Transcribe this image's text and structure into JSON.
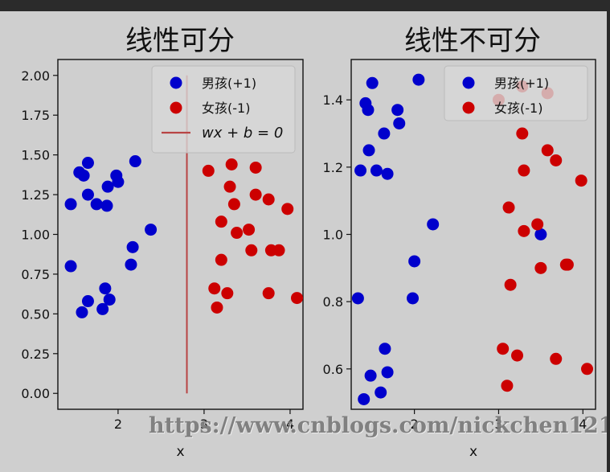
{
  "watermark": "https://www.cnblogs.com/nickchen121/",
  "colors": {
    "pos": "#0000cc",
    "neg": "#cc0000",
    "line": "#b84444",
    "background": "#cfcfcf"
  },
  "chart_data": [
    {
      "type": "scatter",
      "title": "线性可分",
      "xlabel": "x",
      "ylabel": "",
      "xlim": [
        1.3,
        4.15
      ],
      "ylim": [
        -0.1,
        2.1
      ],
      "xticks": [
        "2",
        "3",
        "4"
      ],
      "xtick_values": [
        2,
        3,
        4
      ],
      "yticks": [
        "0.00",
        "0.25",
        "0.50",
        "0.75",
        "1.00",
        "1.25",
        "1.50",
        "1.75",
        "2.00"
      ],
      "ytick_values": [
        0,
        0.25,
        0.5,
        0.75,
        1.0,
        1.25,
        1.5,
        1.75,
        2.0
      ],
      "legend_position": "top-right",
      "legend": [
        {
          "label": "男孩(+1)",
          "marker": "dot",
          "color": "pos"
        },
        {
          "label": "女孩(-1)",
          "marker": "dot",
          "color": "neg"
        },
        {
          "label": "wx + b = 0",
          "marker": "line",
          "color": "line"
        }
      ],
      "decision_line": {
        "x": 2.8,
        "y_range": [
          0,
          2.0
        ]
      },
      "series": [
        {
          "name": "男孩(+1)",
          "color": "pos",
          "points": [
            [
              1.45,
              1.19
            ],
            [
              1.55,
              1.39
            ],
            [
              1.6,
              1.37
            ],
            [
              1.65,
              1.45
            ],
            [
              1.65,
              1.25
            ],
            [
              1.75,
              1.19
            ],
            [
              1.87,
              1.18
            ],
            [
              1.88,
              1.3
            ],
            [
              1.98,
              1.37
            ],
            [
              2.0,
              1.33
            ],
            [
              2.2,
              1.46
            ],
            [
              2.38,
              1.03
            ],
            [
              2.17,
              0.92
            ],
            [
              2.15,
              0.81
            ],
            [
              1.45,
              0.8
            ],
            [
              1.65,
              0.58
            ],
            [
              1.58,
              0.51
            ],
            [
              1.82,
              0.53
            ],
            [
              1.85,
              0.66
            ],
            [
              1.9,
              0.59
            ]
          ]
        },
        {
          "name": "女孩(-1)",
          "color": "neg",
          "points": [
            [
              3.05,
              1.4
            ],
            [
              3.32,
              1.44
            ],
            [
              3.6,
              1.42
            ],
            [
              3.6,
              1.25
            ],
            [
              3.75,
              1.22
            ],
            [
              3.97,
              1.16
            ],
            [
              3.3,
              1.3
            ],
            [
              3.35,
              1.19
            ],
            [
              3.2,
              1.08
            ],
            [
              3.38,
              1.01
            ],
            [
              3.52,
              1.03
            ],
            [
              3.78,
              0.9
            ],
            [
              3.87,
              0.9
            ],
            [
              3.55,
              0.9
            ],
            [
              3.2,
              0.84
            ],
            [
              3.12,
              0.66
            ],
            [
              3.27,
              0.63
            ],
            [
              3.15,
              0.54
            ],
            [
              3.75,
              0.63
            ],
            [
              4.08,
              0.6
            ]
          ]
        }
      ]
    },
    {
      "type": "scatter",
      "title": "线性不可分",
      "xlabel": "x",
      "ylabel": "",
      "xlim": [
        1.25,
        4.15
      ],
      "ylim": [
        0.48,
        1.52
      ],
      "xticks": [
        "2",
        "3",
        "4"
      ],
      "xtick_values": [
        2,
        3,
        4
      ],
      "yticks": [
        "0.6",
        "0.8",
        "1.0",
        "1.2",
        "1.4"
      ],
      "ytick_values": [
        0.6,
        0.8,
        1.0,
        1.2,
        1.4
      ],
      "legend_position": "top-right",
      "legend": [
        {
          "label": "男孩(+1)",
          "marker": "dot",
          "color": "pos"
        },
        {
          "label": "女孩(-1)",
          "marker": "dot",
          "color": "neg"
        }
      ],
      "series": [
        {
          "name": "男孩(+1)",
          "color": "pos",
          "points": [
            [
              1.42,
              1.39
            ],
            [
              1.45,
              1.37
            ],
            [
              1.5,
              1.45
            ],
            [
              1.36,
              1.19
            ],
            [
              1.46,
              1.25
            ],
            [
              1.55,
              1.19
            ],
            [
              1.68,
              1.18
            ],
            [
              1.64,
              1.3
            ],
            [
              1.8,
              1.37
            ],
            [
              1.82,
              1.33
            ],
            [
              2.05,
              1.46
            ],
            [
              2.22,
              1.03
            ],
            [
              2.0,
              0.92
            ],
            [
              1.98,
              0.81
            ],
            [
              1.33,
              0.81
            ],
            [
              1.48,
              0.58
            ],
            [
              1.4,
              0.51
            ],
            [
              1.6,
              0.53
            ],
            [
              1.65,
              0.66
            ],
            [
              1.68,
              0.59
            ],
            [
              3.5,
              1.0
            ]
          ]
        },
        {
          "name": "女孩(-1)",
          "color": "neg",
          "points": [
            [
              3.0,
              1.4
            ],
            [
              3.28,
              1.44
            ],
            [
              3.58,
              1.42
            ],
            [
              3.58,
              1.25
            ],
            [
              3.68,
              1.22
            ],
            [
              3.98,
              1.16
            ],
            [
              3.28,
              1.3
            ],
            [
              3.3,
              1.19
            ],
            [
              3.12,
              1.08
            ],
            [
              3.3,
              1.01
            ],
            [
              3.46,
              1.03
            ],
            [
              3.8,
              0.91
            ],
            [
              3.82,
              0.91
            ],
            [
              3.5,
              0.9
            ],
            [
              3.14,
              0.85
            ],
            [
              3.05,
              0.66
            ],
            [
              3.22,
              0.64
            ],
            [
              3.1,
              0.55
            ],
            [
              3.68,
              0.63
            ],
            [
              4.05,
              0.6
            ]
          ]
        }
      ]
    }
  ]
}
